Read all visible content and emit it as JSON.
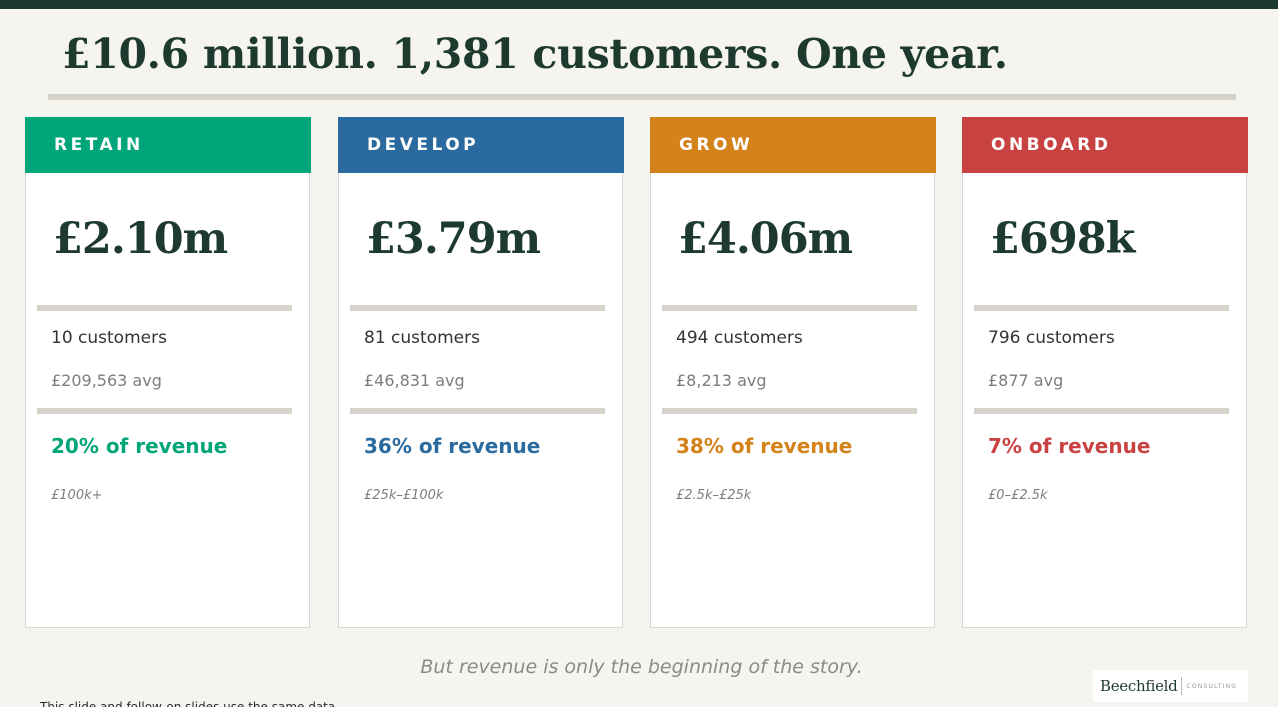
{
  "headline": "£10.6 million. 1,381 customers. One year.",
  "cards": [
    {
      "label": "RETAIN",
      "color": "#00a679",
      "amount": "£2.10m",
      "customers": "10 customers",
      "avg": "£209,563 avg",
      "share": "20% of revenue",
      "range": "£100k+"
    },
    {
      "label": "DEVELOP",
      "color": "#2a6a9e",
      "amount": "£3.79m",
      "customers": "81 customers",
      "avg": "£46,831 avg",
      "share": "36% of revenue",
      "range": "£25k–£100k"
    },
    {
      "label": "GROW",
      "color": "#d4821a",
      "amount": "£4.06m",
      "customers": "494 customers",
      "avg": "£8,213 avg",
      "share": "38% of revenue",
      "range": "£2.5k–£25k"
    },
    {
      "label": "ONBOARD",
      "color": "#c94242",
      "amount": "£698k",
      "customers": "796 customers",
      "avg": "£877 avg",
      "share": "7% of revenue",
      "range": "£0–£2.5k"
    }
  ],
  "footer": "But revenue is only the beginning of the story.",
  "logo": {
    "name": "Beechfield",
    "sub": "CONSULTING"
  },
  "cutoff_text": "This slide and follow-on slides use the same data"
}
